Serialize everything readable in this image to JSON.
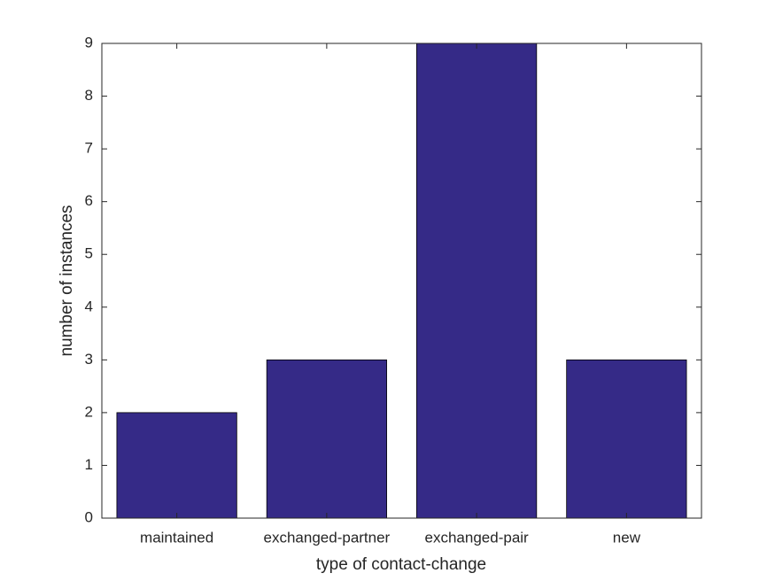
{
  "chart_data": {
    "type": "bar",
    "x_label": "type of contact-change",
    "y_label": "number of instances",
    "categories": [
      "maintained",
      "exchanged-partner",
      "exchanged-pair",
      "new"
    ],
    "values": [
      2,
      3,
      9,
      3
    ],
    "color": "#352a87",
    "ylim": [
      0,
      9
    ],
    "yticks": [
      0,
      1,
      2,
      3,
      4,
      5,
      6,
      7,
      8,
      9
    ],
    "grid": false
  }
}
